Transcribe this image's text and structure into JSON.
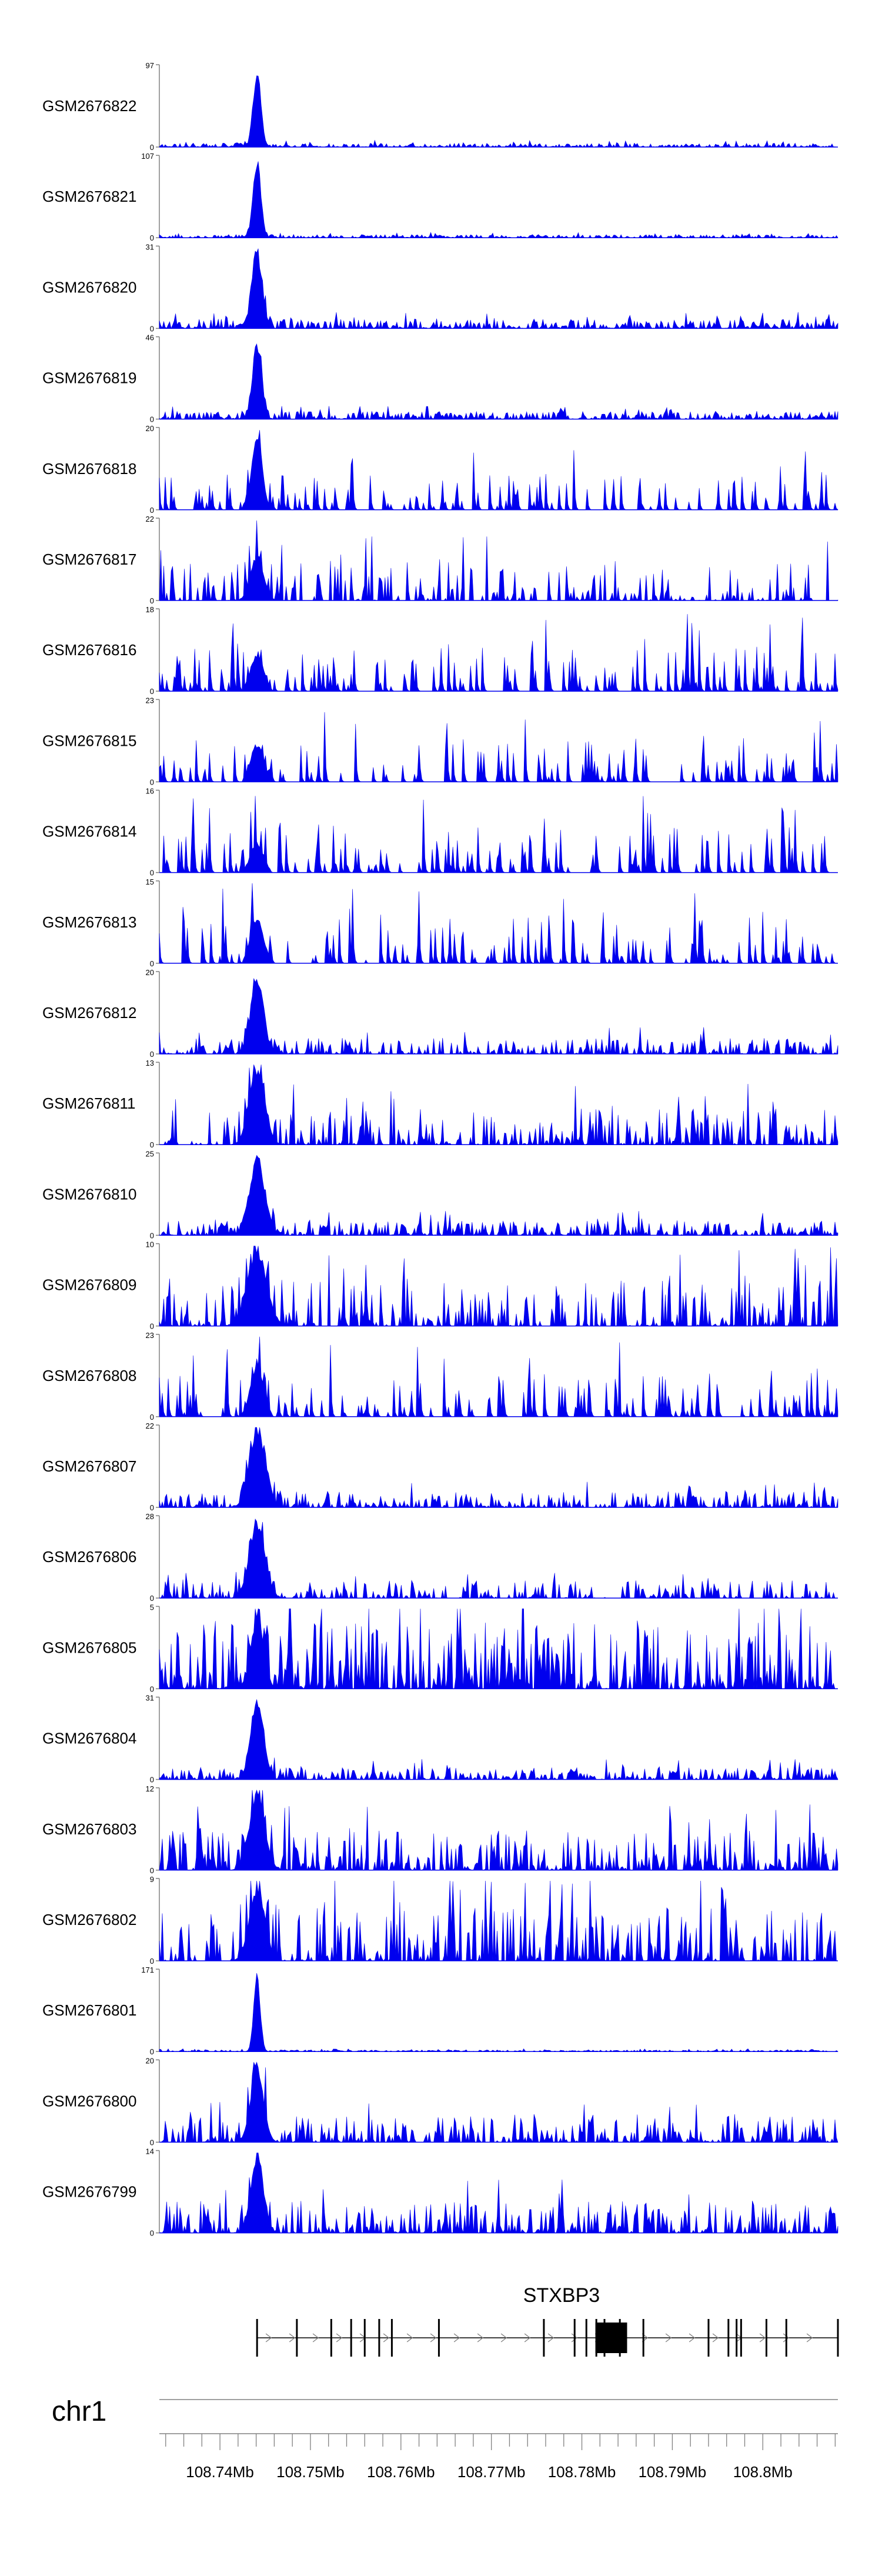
{
  "chart_data": {
    "type": "area",
    "title": "",
    "chromosome": "chr1",
    "gene": "STXBP3",
    "x_range_mb": [
      108.7333,
      108.8083
    ],
    "x_ticks": [
      {
        "value": 108.74,
        "label": "108.74Mb"
      },
      {
        "value": 108.75,
        "label": "108.75Mb"
      },
      {
        "value": 108.76,
        "label": "108.76Mb"
      },
      {
        "value": 108.77,
        "label": "108.77Mb"
      },
      {
        "value": 108.78,
        "label": "108.78Mb"
      },
      {
        "value": 108.79,
        "label": "108.79Mb"
      },
      {
        "value": 108.8,
        "label": "108.8Mb"
      }
    ],
    "gene_model": {
      "start_mb": 108.7441,
      "end_mb": 108.8083,
      "strand": "+",
      "exons_mb": [
        108.7441,
        108.7485,
        108.7523,
        108.7545,
        108.756,
        108.7576,
        108.759,
        108.7642,
        108.7758,
        108.7792,
        108.7805,
        108.7816,
        108.7825,
        108.7842,
        108.7868,
        108.794,
        108.7962,
        108.7971,
        108.7976,
        108.8004,
        108.8026,
        108.8083
      ],
      "thick_block_mb": [
        108.7815,
        108.785
      ]
    },
    "series": [
      {
        "name": "GSM2676822",
        "ymax": 97,
        "ylabel_top": "97",
        "noise": 0.05,
        "peak": 1.0,
        "peakWidth": 0.0006,
        "sparse": 0.0
      },
      {
        "name": "GSM2676821",
        "ymax": 107,
        "ylabel_top": "107",
        "noise": 0.04,
        "peak": 1.0,
        "peakWidth": 0.0006,
        "sparse": 0.0
      },
      {
        "name": "GSM2676820",
        "ymax": 31,
        "ylabel_top": "31",
        "noise": 0.12,
        "peak": 1.0,
        "peakWidth": 0.0008,
        "sparse": 0.0
      },
      {
        "name": "GSM2676819",
        "ymax": 46,
        "ylabel_top": "46",
        "noise": 0.1,
        "peak": 1.0,
        "peakWidth": 0.0007,
        "sparse": 0.0
      },
      {
        "name": "GSM2676818",
        "ymax": 20,
        "ylabel_top": "20",
        "noise": 0.45,
        "peak": 1.0,
        "peakWidth": 0.0008,
        "sparse": 0.6
      },
      {
        "name": "GSM2676817",
        "ymax": 22,
        "ylabel_top": "22",
        "noise": 0.5,
        "peak": 0.6,
        "peakWidth": 0.001,
        "sparse": 0.5
      },
      {
        "name": "GSM2676816",
        "ymax": 18,
        "ylabel_top": "18",
        "noise": 0.6,
        "peak": 0.5,
        "peakWidth": 0.001,
        "sparse": 0.55
      },
      {
        "name": "GSM2676815",
        "ymax": 23,
        "ylabel_top": "23",
        "noise": 0.55,
        "peak": 0.5,
        "peakWidth": 0.001,
        "sparse": 0.7
      },
      {
        "name": "GSM2676814",
        "ymax": 16,
        "ylabel_top": "16",
        "noise": 0.6,
        "peak": 0.4,
        "peakWidth": 0.001,
        "sparse": 0.6
      },
      {
        "name": "GSM2676813",
        "ymax": 15,
        "ylabel_top": "15",
        "noise": 0.65,
        "peak": 0.6,
        "peakWidth": 0.001,
        "sparse": 0.65
      },
      {
        "name": "GSM2676812",
        "ymax": 20,
        "ylabel_top": "20",
        "noise": 0.2,
        "peak": 1.0,
        "peakWidth": 0.001,
        "sparse": 0.2
      },
      {
        "name": "GSM2676811",
        "ymax": 13,
        "ylabel_top": "13",
        "noise": 0.45,
        "peak": 1.0,
        "peakWidth": 0.0012,
        "sparse": 0.35
      },
      {
        "name": "GSM2676810",
        "ymax": 25,
        "ylabel_top": "25",
        "noise": 0.18,
        "peak": 1.0,
        "peakWidth": 0.0012,
        "sparse": 0.15
      },
      {
        "name": "GSM2676809",
        "ymax": 10,
        "ylabel_top": "10",
        "noise": 0.6,
        "peak": 1.0,
        "peakWidth": 0.0015,
        "sparse": 0.35
      },
      {
        "name": "GSM2676808",
        "ymax": 23,
        "ylabel_top": "23",
        "noise": 0.55,
        "peak": 0.7,
        "peakWidth": 0.001,
        "sparse": 0.6
      },
      {
        "name": "GSM2676807",
        "ymax": 22,
        "ylabel_top": "22",
        "noise": 0.2,
        "peak": 1.0,
        "peakWidth": 0.0012,
        "sparse": 0.15
      },
      {
        "name": "GSM2676806",
        "ymax": 28,
        "ylabel_top": "28",
        "noise": 0.22,
        "peak": 1.0,
        "peakWidth": 0.0012,
        "sparse": 0.4
      },
      {
        "name": "GSM2676805",
        "ymax": 5,
        "ylabel_top": "5",
        "noise": 0.85,
        "peak": 0.9,
        "peakWidth": 0.001,
        "sparse": 0.1
      },
      {
        "name": "GSM2676804",
        "ymax": 31,
        "ylabel_top": "31",
        "noise": 0.15,
        "peak": 1.0,
        "peakWidth": 0.001,
        "sparse": 0.15
      },
      {
        "name": "GSM2676803",
        "ymax": 12,
        "ylabel_top": "12",
        "noise": 0.5,
        "peak": 1.0,
        "peakWidth": 0.0012,
        "sparse": 0.25
      },
      {
        "name": "GSM2676802",
        "ymax": 9,
        "ylabel_top": "9",
        "noise": 0.7,
        "peak": 0.95,
        "peakWidth": 0.0012,
        "sparse": 0.35
      },
      {
        "name": "GSM2676801",
        "ymax": 171,
        "ylabel_top": "171",
        "noise": 0.02,
        "peak": 1.0,
        "peakWidth": 0.0005,
        "sparse": 0.0
      },
      {
        "name": "GSM2676800",
        "ymax": 20,
        "ylabel_top": "20",
        "noise": 0.35,
        "peak": 1.0,
        "peakWidth": 0.001,
        "sparse": 0.25
      },
      {
        "name": "GSM2676799",
        "ymax": 14,
        "ylabel_top": "14",
        "noise": 0.4,
        "peak": 1.0,
        "peakWidth": 0.001,
        "sparse": 0.2
      }
    ],
    "ylabel_bottom": "0",
    "peak_center_mb": 108.7441,
    "fill_color": "#0000ee",
    "axis_color": "#808080"
  }
}
